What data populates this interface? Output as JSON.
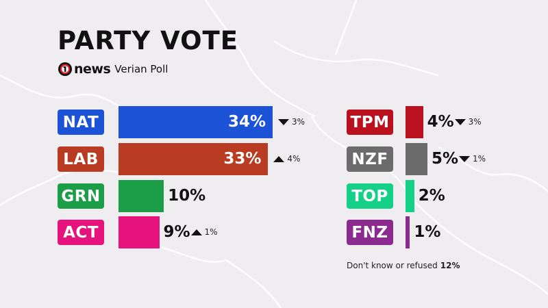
{
  "header": {
    "title": "PARTY VOTE",
    "brand": "news",
    "poll": "Verian Poll"
  },
  "colors": {
    "background": "#efedf0",
    "NAT": "#1b52d6",
    "LAB": "#b93b22",
    "GRN": "#1c9e48",
    "ACT": "#e5137b",
    "TPM": "#bb101e",
    "NZF": "#6b6b6b",
    "TOP": "#15d087",
    "FNZ": "#8b2a8f"
  },
  "chart_data": {
    "type": "bar",
    "title": "PARTY VOTE",
    "unit": "%",
    "categories": [
      "NAT",
      "LAB",
      "GRN",
      "ACT",
      "TPM",
      "NZF",
      "TOP",
      "FNZ"
    ],
    "values": [
      34,
      33,
      10,
      9,
      4,
      5,
      2,
      1
    ],
    "labels": [
      "34%",
      "33%",
      "10%",
      "9%",
      "4%",
      "5%",
      "2%",
      "1%"
    ],
    "changes": [
      {
        "direction": "down",
        "text": "3%"
      },
      {
        "direction": "up",
        "text": "4%"
      },
      null,
      {
        "direction": "up",
        "text": "1%"
      },
      {
        "direction": "down",
        "text": "3%"
      },
      {
        "direction": "down",
        "text": "1%"
      },
      null,
      null
    ]
  },
  "footnote": {
    "text": "Don't know or refused",
    "value": "12%"
  }
}
